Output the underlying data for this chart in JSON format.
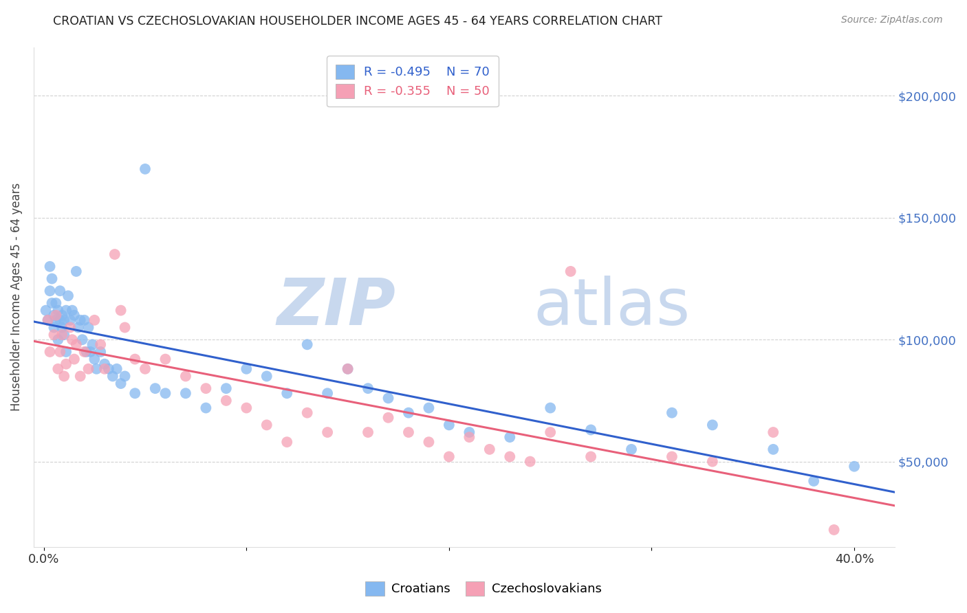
{
  "title": "CROATIAN VS CZECHOSLOVAKIAN HOUSEHOLDER INCOME AGES 45 - 64 YEARS CORRELATION CHART",
  "source": "Source: ZipAtlas.com",
  "ylabel": "Householder Income Ages 45 - 64 years",
  "xlabel_ticks": [
    "0.0%",
    "",
    "",
    "",
    "40.0%"
  ],
  "xlabel_vals": [
    0.0,
    0.1,
    0.2,
    0.3,
    0.4
  ],
  "ytick_labels": [
    "$50,000",
    "$100,000",
    "$150,000",
    "$200,000"
  ],
  "ytick_vals": [
    50000,
    100000,
    150000,
    200000
  ],
  "ylim": [
    15000,
    220000
  ],
  "xlim": [
    -0.005,
    0.42
  ],
  "croatian_R": -0.495,
  "croatian_N": 70,
  "czechoslovakian_R": -0.355,
  "czechoslovakian_N": 50,
  "croatian_color": "#85B8F0",
  "czechoslovakian_color": "#F5A0B5",
  "croatian_line_color": "#3060CC",
  "czechoslovakian_line_color": "#E8607A",
  "watermark_zip": "ZIP",
  "watermark_atlas": "atlas",
  "watermark_color": "#C8D8EE",
  "background_color": "#FFFFFF",
  "croatian_x": [
    0.001,
    0.002,
    0.003,
    0.003,
    0.004,
    0.004,
    0.005,
    0.005,
    0.006,
    0.006,
    0.007,
    0.007,
    0.008,
    0.008,
    0.009,
    0.009,
    0.01,
    0.01,
    0.011,
    0.011,
    0.012,
    0.013,
    0.014,
    0.015,
    0.016,
    0.017,
    0.018,
    0.019,
    0.02,
    0.021,
    0.022,
    0.023,
    0.024,
    0.025,
    0.026,
    0.028,
    0.03,
    0.032,
    0.034,
    0.036,
    0.038,
    0.04,
    0.045,
    0.05,
    0.055,
    0.06,
    0.07,
    0.08,
    0.09,
    0.1,
    0.11,
    0.12,
    0.13,
    0.14,
    0.15,
    0.16,
    0.17,
    0.18,
    0.19,
    0.2,
    0.21,
    0.23,
    0.25,
    0.27,
    0.29,
    0.31,
    0.33,
    0.36,
    0.38,
    0.4
  ],
  "croatian_y": [
    112000,
    108000,
    120000,
    130000,
    115000,
    125000,
    110000,
    105000,
    108000,
    115000,
    112000,
    100000,
    108000,
    120000,
    105000,
    110000,
    102000,
    108000,
    95000,
    112000,
    118000,
    108000,
    112000,
    110000,
    128000,
    105000,
    108000,
    100000,
    108000,
    95000,
    105000,
    95000,
    98000,
    92000,
    88000,
    95000,
    90000,
    88000,
    85000,
    88000,
    82000,
    85000,
    78000,
    170000,
    80000,
    78000,
    78000,
    72000,
    80000,
    88000,
    85000,
    78000,
    98000,
    78000,
    88000,
    80000,
    76000,
    70000,
    72000,
    65000,
    62000,
    60000,
    72000,
    63000,
    55000,
    70000,
    65000,
    55000,
    42000,
    48000
  ],
  "czechoslovakian_x": [
    0.002,
    0.003,
    0.005,
    0.006,
    0.007,
    0.008,
    0.009,
    0.01,
    0.011,
    0.013,
    0.014,
    0.015,
    0.016,
    0.018,
    0.02,
    0.022,
    0.025,
    0.028,
    0.03,
    0.035,
    0.038,
    0.04,
    0.045,
    0.05,
    0.06,
    0.07,
    0.08,
    0.09,
    0.1,
    0.11,
    0.12,
    0.13,
    0.14,
    0.15,
    0.16,
    0.17,
    0.18,
    0.19,
    0.2,
    0.21,
    0.22,
    0.23,
    0.24,
    0.25,
    0.26,
    0.27,
    0.31,
    0.33,
    0.36,
    0.39
  ],
  "czechoslovakian_y": [
    108000,
    95000,
    102000,
    110000,
    88000,
    95000,
    102000,
    85000,
    90000,
    105000,
    100000,
    92000,
    98000,
    85000,
    95000,
    88000,
    108000,
    98000,
    88000,
    135000,
    112000,
    105000,
    92000,
    88000,
    92000,
    85000,
    80000,
    75000,
    72000,
    65000,
    58000,
    70000,
    62000,
    88000,
    62000,
    68000,
    62000,
    58000,
    52000,
    60000,
    55000,
    52000,
    50000,
    62000,
    128000,
    52000,
    52000,
    50000,
    62000,
    22000
  ],
  "legend_R_color": "#3060CC",
  "legend_N_color": "#3060CC",
  "legend_R2_color": "#E8607A",
  "legend_N2_color": "#E8607A"
}
